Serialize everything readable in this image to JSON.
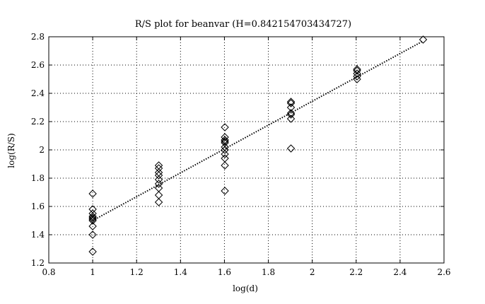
{
  "chart_data": {
    "type": "scatter",
    "title": "R/S plot for beanvar (H=0.842154703434727)",
    "xlabel": "log(d)",
    "ylabel": "log(R/S)",
    "xlim": [
      0.8,
      2.6
    ],
    "ylim": [
      1.2,
      2.8
    ],
    "xticks": [
      "0.8",
      "1",
      "1.2",
      "1.4",
      "1.6",
      "1.8",
      "2",
      "2.2",
      "2.4",
      "2.6"
    ],
    "yticks": [
      "1.2",
      "1.4",
      "1.6",
      "1.8",
      "2",
      "2.2",
      "2.4",
      "2.6",
      "2.8"
    ],
    "grid": true,
    "marker": "diamond",
    "series": [
      {
        "values": [
          [
            1.0,
            1.69
          ],
          [
            1.0,
            1.58
          ],
          [
            1.0,
            1.55
          ],
          [
            1.0,
            1.53
          ],
          [
            1.0,
            1.52
          ],
          [
            1.0,
            1.51
          ],
          [
            1.0,
            1.5
          ],
          [
            1.0,
            1.46
          ],
          [
            1.0,
            1.4
          ],
          [
            1.0,
            1.28
          ],
          [
            1.301,
            1.89
          ],
          [
            1.301,
            1.87
          ],
          [
            1.301,
            1.84
          ],
          [
            1.301,
            1.82
          ],
          [
            1.301,
            1.79
          ],
          [
            1.301,
            1.76
          ],
          [
            1.301,
            1.73
          ],
          [
            1.301,
            1.68
          ],
          [
            1.301,
            1.63
          ],
          [
            1.602,
            2.16
          ],
          [
            1.602,
            2.09
          ],
          [
            1.602,
            2.07
          ],
          [
            1.602,
            2.06
          ],
          [
            1.602,
            2.05
          ],
          [
            1.602,
            2.02
          ],
          [
            1.602,
            2.0
          ],
          [
            1.602,
            1.97
          ],
          [
            1.602,
            1.94
          ],
          [
            1.602,
            1.89
          ],
          [
            1.602,
            1.71
          ],
          [
            1.903,
            2.34
          ],
          [
            1.903,
            2.33
          ],
          [
            1.903,
            2.3
          ],
          [
            1.903,
            2.26
          ],
          [
            1.903,
            2.25
          ],
          [
            1.903,
            2.22
          ],
          [
            1.903,
            2.01
          ],
          [
            2.204,
            2.57
          ],
          [
            2.204,
            2.56
          ],
          [
            2.204,
            2.54
          ],
          [
            2.204,
            2.52
          ],
          [
            2.204,
            2.5
          ],
          [
            2.505,
            2.78
          ]
        ]
      }
    ],
    "fit_line": {
      "style": "dotted",
      "points": [
        [
          1.0,
          1.5
        ],
        [
          2.505,
          2.77
        ]
      ]
    }
  }
}
